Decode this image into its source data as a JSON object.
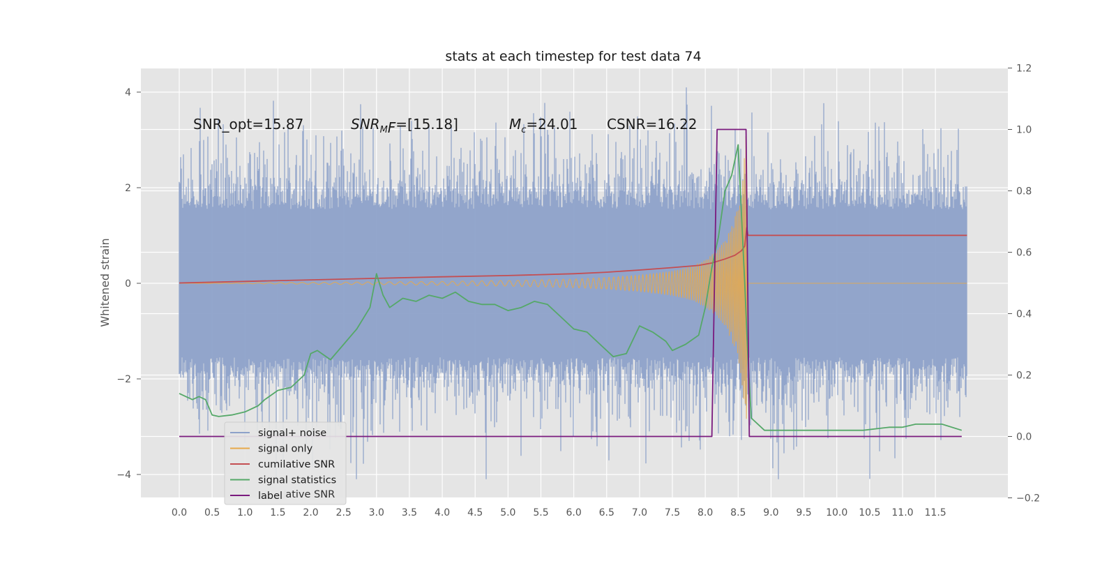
{
  "chart_data": {
    "type": "line",
    "title": "stats at each timestep for test data 74",
    "xlabel": "",
    "ylabel": "Whitened strain",
    "y2label": "",
    "xlim": [
      -0.58,
      12.6
    ],
    "ylim": [
      -4.5,
      4.5
    ],
    "y2lim": [
      -0.2,
      1.2
    ],
    "xticks": [
      "0.0",
      "0.5",
      "1.0",
      "1.5",
      "2.0",
      "2.5",
      "3.0",
      "3.5",
      "4.0",
      "4.5",
      "5.0",
      "5.5",
      "6.0",
      "6.5",
      "7.0",
      "7.5",
      "8.0",
      "8.5",
      "9.0",
      "9.5",
      "10.0",
      "10.5",
      "11.0",
      "11.5"
    ],
    "yticks": [
      "4",
      "2",
      "0",
      "−2",
      "−4"
    ],
    "y2ticks": [
      "1.2",
      "1.0",
      "0.8",
      "0.6",
      "0.4",
      "0.2",
      "0.0",
      "−0.2"
    ],
    "grid": true,
    "legend_position": "bottom-left",
    "annotations": [
      {
        "id": "snr-opt",
        "text": "SNR_opt=15.87"
      },
      {
        "id": "snr-mf",
        "main": "SNR",
        "sub": "M",
        "rest": "F=[15.18]"
      },
      {
        "id": "mc",
        "main": "M",
        "sub": "c",
        "rest": "=24.01"
      },
      {
        "id": "csnr",
        "text": "CSNR=16.22"
      }
    ],
    "series": [
      {
        "name": "signal+ noise",
        "axis": "left",
        "color": "#8da1c9",
        "kind": "noise",
        "x_range": [
          0.0,
          11.98
        ],
        "envelope_typical": 1.8,
        "envelope_max": 4.1
      },
      {
        "name": "signal only",
        "axis": "left",
        "color": "#e8a94a",
        "kind": "chirp",
        "x": [
          0.0,
          2.0,
          4.0,
          5.0,
          6.0,
          6.5,
          7.0,
          7.5,
          7.8,
          8.0,
          8.2,
          8.3,
          8.4,
          8.5,
          8.55,
          8.6,
          8.63,
          8.65,
          8.7,
          11.98
        ],
        "amplitude": [
          0.0,
          0.02,
          0.04,
          0.06,
          0.09,
          0.12,
          0.17,
          0.26,
          0.36,
          0.5,
          0.72,
          0.9,
          1.2,
          1.6,
          2.0,
          2.8,
          3.3,
          0.0,
          0.0,
          0.0
        ]
      },
      {
        "name": "cumilative SNR",
        "axis": "right",
        "color": "#c44e52",
        "x": [
          0.0,
          1.0,
          2.0,
          3.0,
          4.0,
          5.0,
          6.0,
          6.5,
          7.0,
          7.5,
          7.9,
          8.1,
          8.3,
          8.45,
          8.55,
          8.6,
          8.63,
          8.65,
          11.98
        ],
        "values": [
          0.5,
          0.505,
          0.51,
          0.515,
          0.52,
          0.524,
          0.53,
          0.535,
          0.542,
          0.55,
          0.557,
          0.565,
          0.578,
          0.59,
          0.605,
          0.62,
          0.68,
          0.655,
          0.655
        ]
      },
      {
        "name": "signal statistics",
        "axis": "right",
        "color": "#55a868",
        "x": [
          0.0,
          0.1,
          0.2,
          0.3,
          0.4,
          0.5,
          0.6,
          0.8,
          1.0,
          1.2,
          1.3,
          1.5,
          1.7,
          1.9,
          2.0,
          2.1,
          2.3,
          2.5,
          2.7,
          2.9,
          3.0,
          3.1,
          3.2,
          3.4,
          3.6,
          3.8,
          4.0,
          4.2,
          4.4,
          4.6,
          4.8,
          5.0,
          5.2,
          5.4,
          5.6,
          5.8,
          6.0,
          6.2,
          6.4,
          6.6,
          6.8,
          7.0,
          7.2,
          7.4,
          7.5,
          7.7,
          7.9,
          8.0,
          8.1,
          8.2,
          8.3,
          8.4,
          8.5,
          8.6,
          8.65,
          8.7,
          8.9,
          9.2,
          9.6,
          10.0,
          10.4,
          10.8,
          11.0,
          11.2,
          11.6,
          11.9
        ],
        "values": [
          0.14,
          0.13,
          0.12,
          0.13,
          0.12,
          0.07,
          0.065,
          0.07,
          0.08,
          0.1,
          0.12,
          0.15,
          0.16,
          0.2,
          0.27,
          0.28,
          0.25,
          0.3,
          0.35,
          0.42,
          0.53,
          0.46,
          0.42,
          0.45,
          0.44,
          0.46,
          0.45,
          0.47,
          0.44,
          0.43,
          0.43,
          0.41,
          0.42,
          0.44,
          0.43,
          0.39,
          0.35,
          0.34,
          0.3,
          0.26,
          0.27,
          0.36,
          0.34,
          0.31,
          0.28,
          0.3,
          0.33,
          0.42,
          0.55,
          0.65,
          0.8,
          0.85,
          0.95,
          0.5,
          0.25,
          0.06,
          0.02,
          0.02,
          0.02,
          0.02,
          0.02,
          0.03,
          0.03,
          0.04,
          0.04,
          0.02
        ]
      },
      {
        "name": "label",
        "axis": "right",
        "color": "#7a1a7e",
        "x": [
          0.0,
          8.1,
          8.18,
          8.62,
          8.67,
          11.9
        ],
        "values": [
          0.0,
          0.0,
          1.0,
          1.0,
          0.0,
          0.0
        ]
      }
    ],
    "legend_entries": [
      "signal+ noise",
      "signal only",
      "cumilative SNR",
      "signal statistics",
      "label"
    ],
    "legend_ghost_text": "cumilative SNR",
    "colors": {
      "background": "#e5e5e5",
      "grid": "#ffffff",
      "text": "#1a1a1a",
      "tick": "#555555"
    }
  }
}
